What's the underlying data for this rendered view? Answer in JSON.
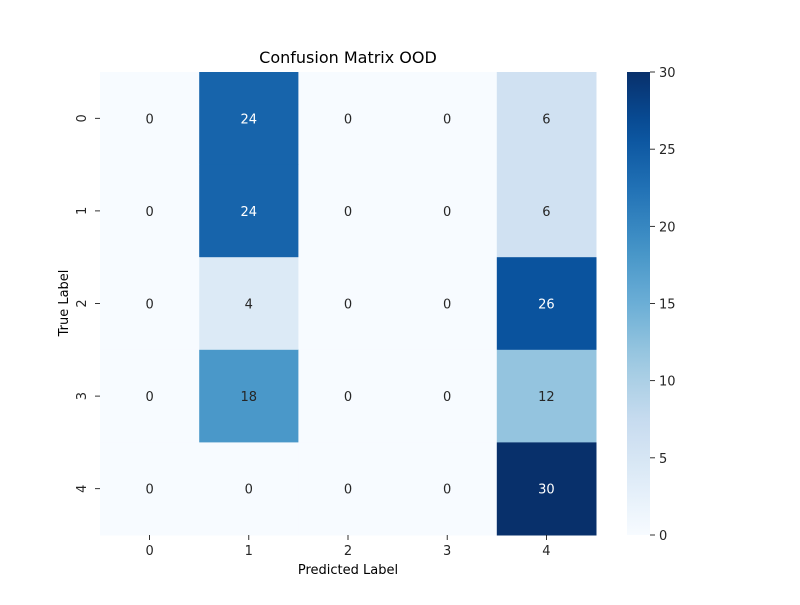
{
  "chart_data": {
    "type": "heatmap",
    "title": "Confusion Matrix OOD",
    "xlabel": "Predicted Label",
    "ylabel": "True Label",
    "x_categories": [
      "0",
      "1",
      "2",
      "3",
      "4"
    ],
    "y_categories": [
      "0",
      "1",
      "2",
      "3",
      "4"
    ],
    "values": [
      [
        0,
        24,
        0,
        0,
        6
      ],
      [
        0,
        24,
        0,
        0,
        6
      ],
      [
        0,
        4,
        0,
        0,
        26
      ],
      [
        0,
        18,
        0,
        0,
        12
      ],
      [
        0,
        0,
        0,
        0,
        30
      ]
    ],
    "colormap": "Blues",
    "vmin": 0,
    "vmax": 30,
    "colorbar_ticks": [
      0,
      5,
      10,
      15,
      20,
      25,
      30
    ],
    "annotated": true
  }
}
